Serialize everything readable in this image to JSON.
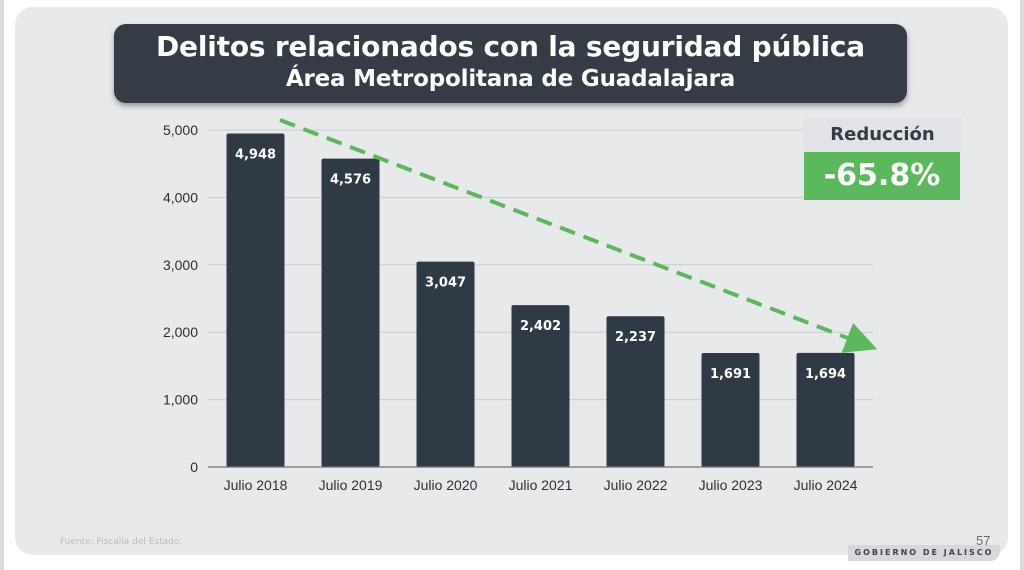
{
  "slide": {
    "title": "Delitos relacionados con la seguridad pública",
    "subtitle": "Área Metropolitana de Guadalajara",
    "source": "Fuente: Fiscalía del Estado.",
    "page_number": "57",
    "footer": "GOBIERNO DE JALISCO"
  },
  "callout": {
    "label": "Reducción",
    "value": "-65.8%",
    "color": "#5cb85c"
  },
  "colors": {
    "bar": "#2f3a44",
    "trend": "#5cb85c",
    "grid": "#c9cbcf",
    "axis": "#6b6e72"
  },
  "chart_data": {
    "type": "bar",
    "title": "Delitos relacionados con la seguridad pública",
    "subtitle": "Área Metropolitana de Guadalajara",
    "categories": [
      "Julio 2018",
      "Julio 2019",
      "Julio 2020",
      "Julio 2021",
      "Julio 2022",
      "Julio 2023",
      "Julio 2024"
    ],
    "values": [
      4948,
      4576,
      3047,
      2402,
      2237,
      1691,
      1694
    ],
    "value_labels": [
      "4,948",
      "4,576",
      "3,047",
      "2,402",
      "2,237",
      "1,691",
      "1,694"
    ],
    "xlabel": "",
    "ylabel": "",
    "ylim": [
      0,
      5000
    ],
    "yticks": [
      0,
      1000,
      2000,
      3000,
      4000,
      5000
    ],
    "ytick_labels": [
      "0",
      "1,000",
      "2,000",
      "3,000",
      "4,000",
      "5,000"
    ],
    "grid": true,
    "legend": "none",
    "annotations": [
      "Dashed green downward trend arrow",
      "Reducción -65.8%"
    ]
  }
}
